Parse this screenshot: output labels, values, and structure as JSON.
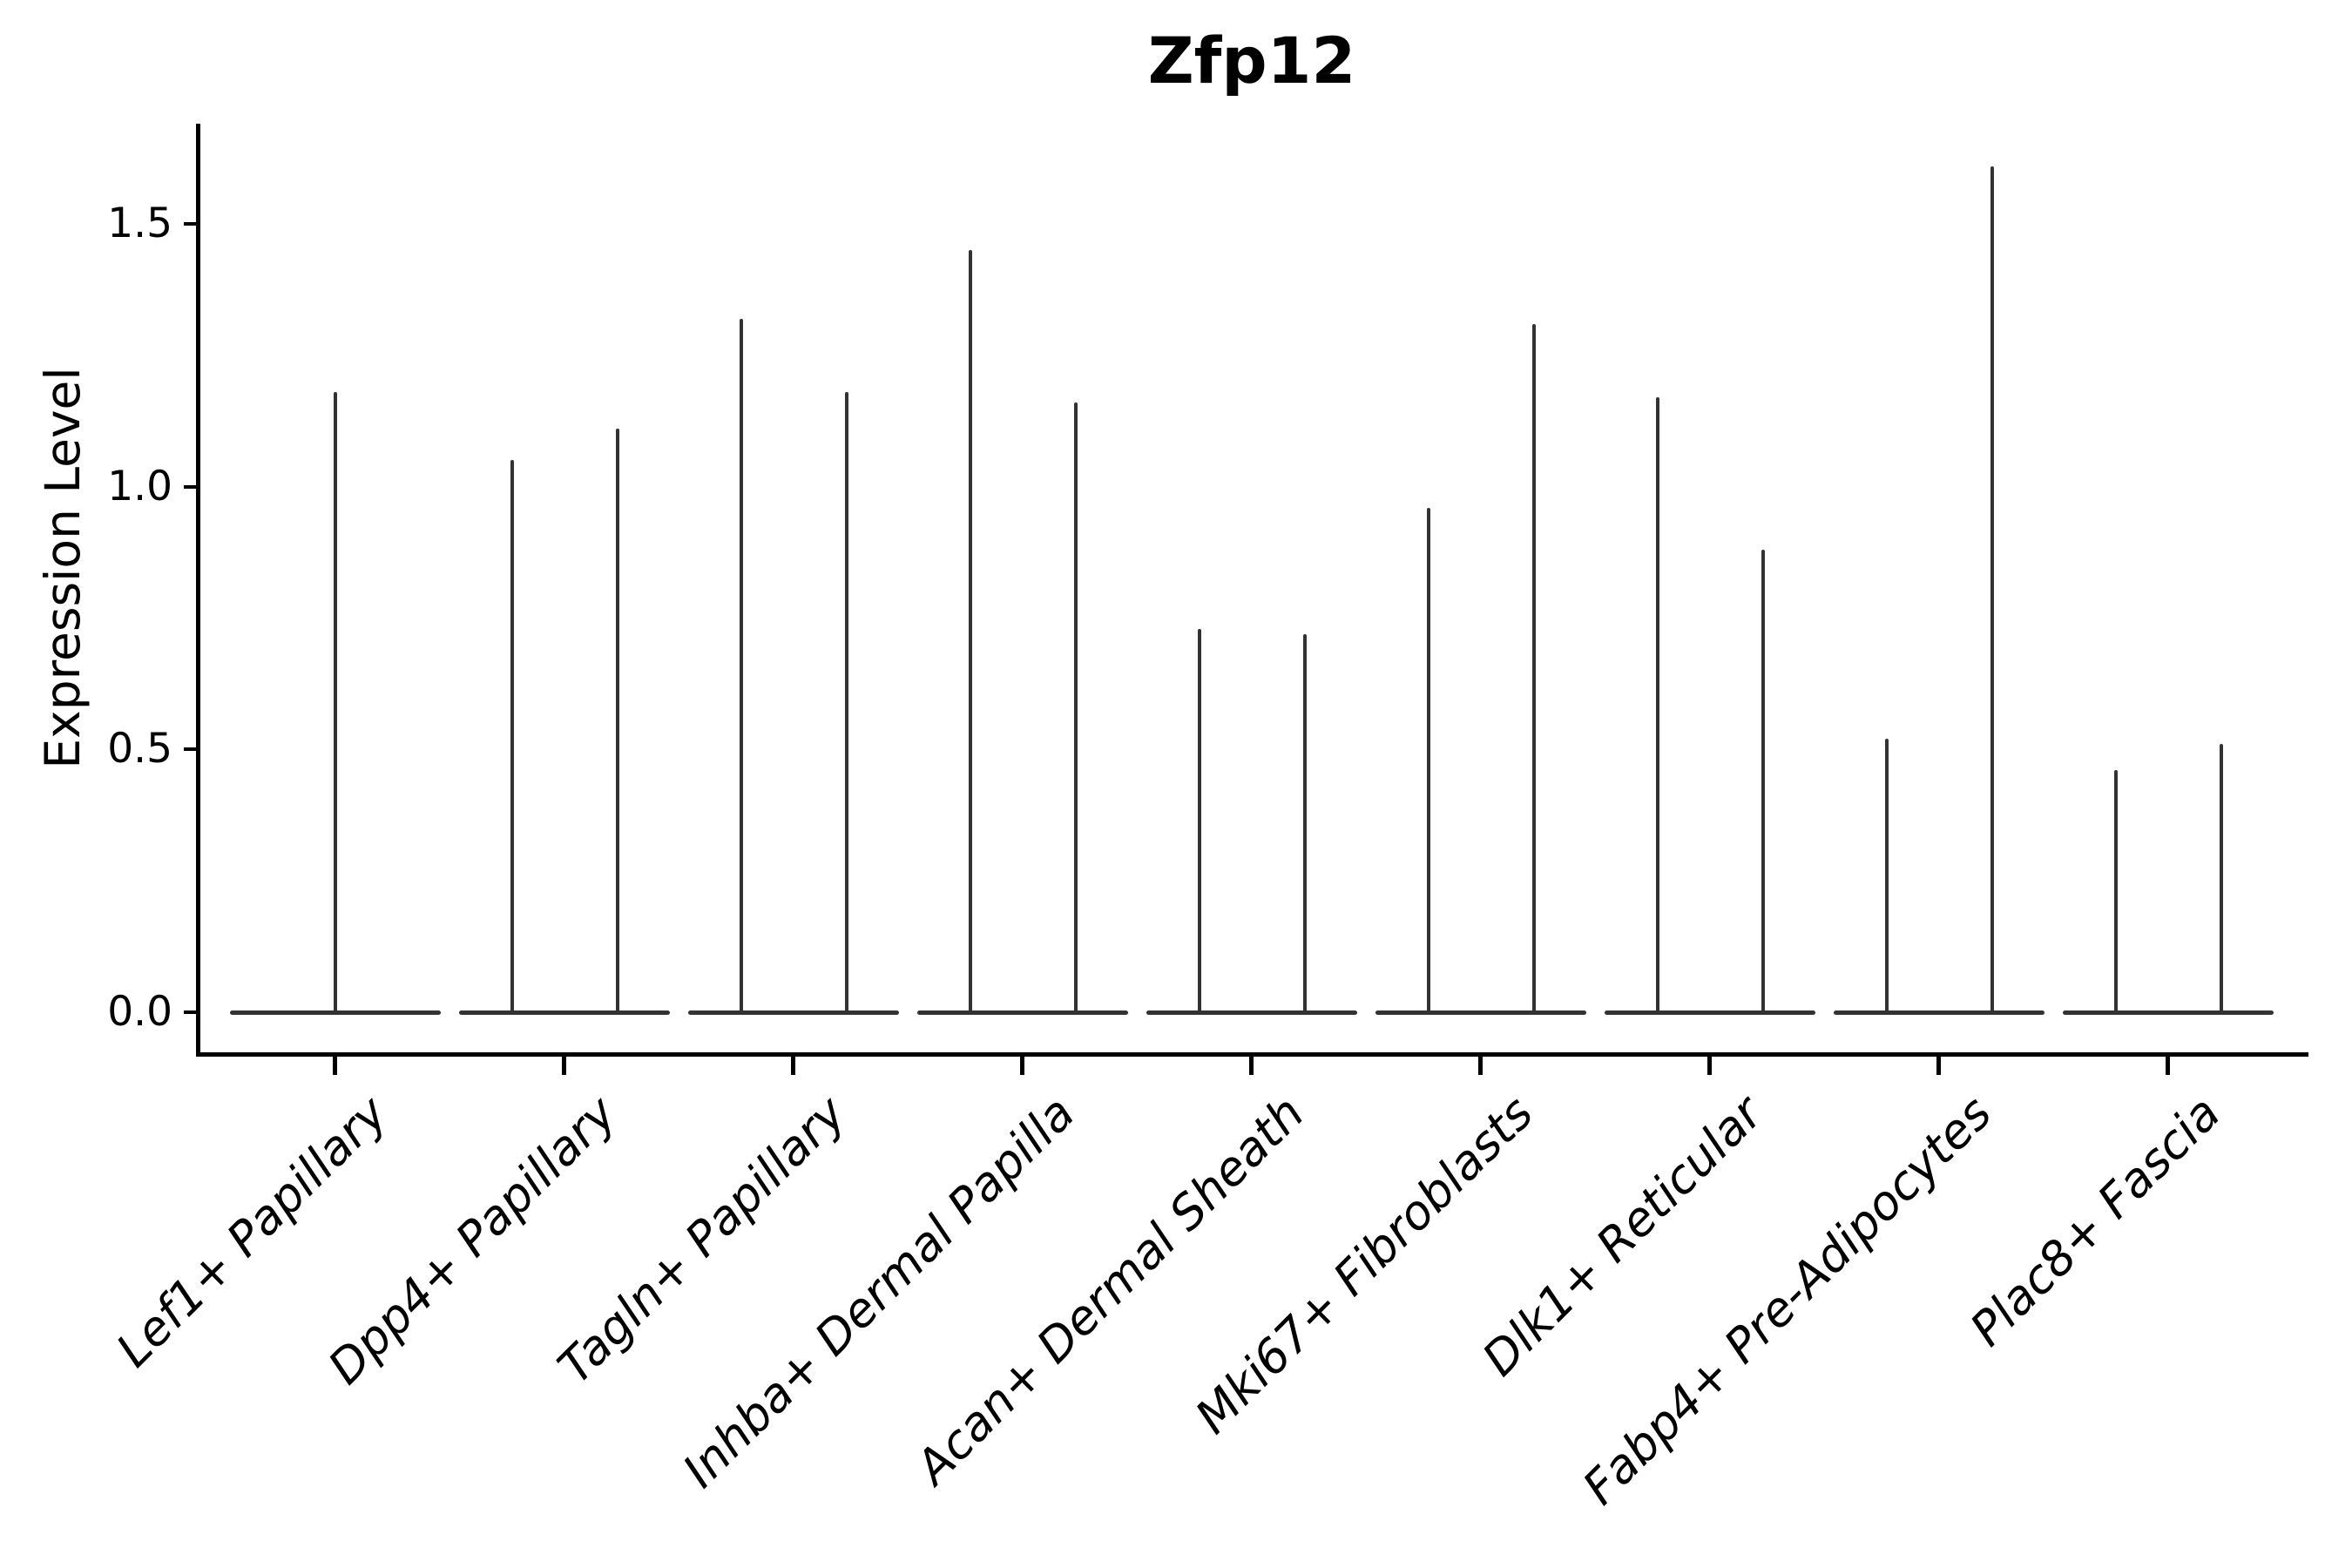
{
  "figure": {
    "title": "Zfp12",
    "y_axis_label": "Expression Level"
  },
  "chart_data": {
    "type": "violin",
    "title": "Zfp12",
    "xlabel": "",
    "ylabel": "Expression Level",
    "grid": false,
    "legend": false,
    "background": "#ffffff",
    "y_tick_labels": [
      "0.0",
      "0.5",
      "1.0",
      "1.5"
    ],
    "y_tick_values": [
      0.0,
      0.5,
      1.0,
      1.5
    ],
    "ylim": [
      -0.08,
      1.68
    ],
    "baseline_value": 0.0,
    "violin_style": "needle violins: wide flat base at expression 0 with thin vertical spike(s) rising to the maximum expression value(s); categories after the first show two spikes side by side",
    "categories": [
      "Lef1+ Papillary",
      "Dpp4+ Papillary",
      "Tagln+ Papillary",
      "Inhba+ Dermal Papilla",
      "Acan+ Dermal Sheath",
      "Mki67+ Fibroblasts",
      "Dlk1+ Reticular",
      "Fabp4+ Pre-Adipocytes",
      "Plac8+ Fascia"
    ],
    "series": [
      {
        "category": "Lef1+ Papillary",
        "spike_maxima": [
          1.18
        ]
      },
      {
        "category": "Dpp4+ Papillary",
        "spike_maxima": [
          1.05,
          1.11
        ]
      },
      {
        "category": "Tagln+ Papillary",
        "spike_maxima": [
          1.32,
          1.18
        ]
      },
      {
        "category": "Inhba+ Dermal Papilla",
        "spike_maxima": [
          1.45,
          1.16
        ]
      },
      {
        "category": "Acan+ Dermal Sheath",
        "spike_maxima": [
          0.73,
          0.72
        ]
      },
      {
        "category": "Mki67+ Fibroblasts",
        "spike_maxima": [
          0.96,
          1.31
        ]
      },
      {
        "category": "Dlk1+ Reticular",
        "spike_maxima": [
          1.17,
          0.88
        ]
      },
      {
        "category": "Fabp4+ Pre-Adipocytes",
        "spike_maxima": [
          0.52,
          1.61
        ]
      },
      {
        "category": "Plac8+ Fascia",
        "spike_maxima": [
          0.46,
          0.51
        ]
      }
    ],
    "colors": {
      "violin": "#333333",
      "axis": "#000000",
      "text": "#000000",
      "background": "#ffffff"
    }
  }
}
